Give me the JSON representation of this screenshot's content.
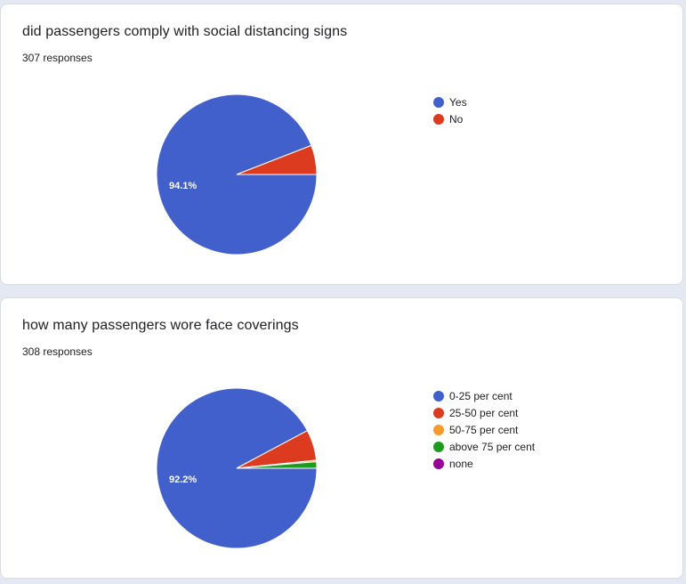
{
  "charts": [
    {
      "title": "did passengers comply with social distancing signs",
      "responses": "307 responses"
    },
    {
      "title": "how many passengers wore face coverings",
      "responses": "308 responses"
    }
  ],
  "chart_data": [
    {
      "type": "pie",
      "title": "did passengers comply with social distancing signs",
      "total_responses": 307,
      "categories": [
        "Yes",
        "No"
      ],
      "values": [
        94.1,
        5.9
      ],
      "unit": "percent",
      "data_labels": [
        "94.1%"
      ],
      "colors": [
        "#4160cc",
        "#dc3b1f"
      ],
      "legend_position": "right"
    },
    {
      "type": "pie",
      "title": "how many passengers wore face coverings",
      "total_responses": 308,
      "categories": [
        "0-25 per cent",
        "25-50 per cent",
        "50-75 per cent",
        "above 75 per cent",
        "none"
      ],
      "values": [
        92.2,
        6.2,
        0.3,
        1.3,
        0
      ],
      "unit": "percent",
      "data_labels": [
        "92.2%"
      ],
      "colors": [
        "#4160cc",
        "#dc3b1f",
        "#f79a2b",
        "#1e9a1e",
        "#960096"
      ],
      "legend_position": "right"
    }
  ]
}
